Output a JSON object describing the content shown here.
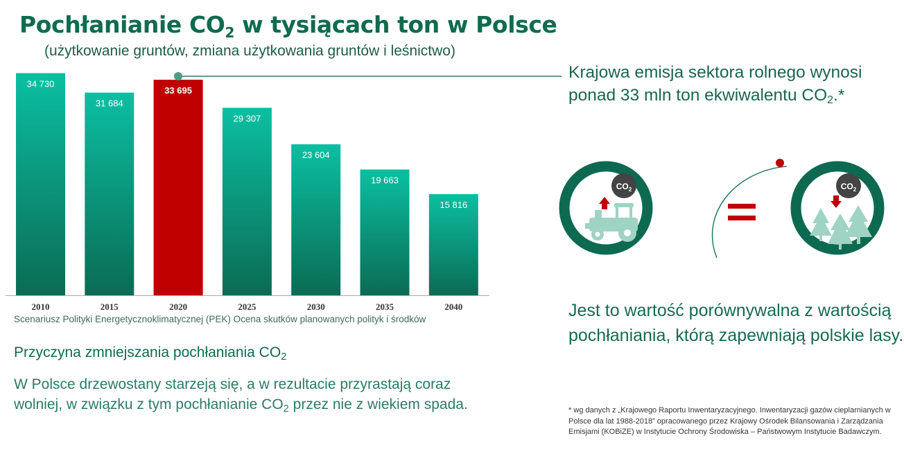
{
  "header": {
    "title_pre": "Pochłanianie CO",
    "title_sub": "2",
    "title_post": " w tysiącach ton w Polsce",
    "subtitle": "(użytkowanie gruntów, zmiana użytkowania gruntów i leśnictwo)"
  },
  "chart_data": {
    "type": "bar",
    "categories": [
      "2010",
      "2015",
      "2020",
      "2025",
      "2030",
      "2035",
      "2040"
    ],
    "values": [
      34730,
      31684,
      33695,
      29307,
      23604,
      19663,
      15816
    ],
    "value_labels": [
      "34 730",
      "31 684",
      "33 695",
      "29 307",
      "23 604",
      "19 663",
      "15 816"
    ],
    "highlight_index": 2,
    "ylim": [
      0,
      35000
    ],
    "colors": {
      "bar_top": "#0bbfa2",
      "bar_bottom": "#0b6b54",
      "highlight": "#c00000",
      "axis": "#aaaaaa",
      "tick_text": "#333333"
    }
  },
  "chart_note": "Scenariusz Polityki Energetycznoklimatycznej (PEK) Ocena skutków planowanych polityk i środków",
  "reason": {
    "heading_pre": "Przyczyna zmniejszania pochłaniania CO",
    "heading_sub": "2",
    "text_pre": "W Polsce drzewostany starzeją się, a w rezultacie przyrastają coraz wolniej,  w związku z tym pochłanianie CO",
    "text_sub": "2",
    "text_post": " przez nie z wiekiem spada."
  },
  "emission": {
    "text_pre": "Krajowa emisja sektora rolnego wynosi ponad 33 mln ton ekwiwalentu CO",
    "text_sub": "2",
    "text_post": ".*"
  },
  "comparison": "Jest to wartość porównywalna z wartością pochłaniania, którą zapewniają polskie lasy.",
  "footnote": "* wg danych z „Krajowego Raportu Inwentaryzacyjnego. Inwentaryzacji gazów cieplarnianych w Polsce dla lat 1988-2018” opracowanego przez Krajowy Ośrodek Bilansowania i Zarządzania Emisjami (KOBiZE) w Instytucie Ochrony Środowiska – Państwowym Instytucie Badawczym.",
  "icons": {
    "left": "tractor-emission-icon",
    "middle": "equals-icon",
    "right": "forest-absorption-icon",
    "badge_text": "CO",
    "badge_sub": "2"
  },
  "palette": {
    "dark_green": "#0f6b4f",
    "ring_green": "#0d6a50",
    "light_green": "#b9ddd3",
    "red": "#c00000"
  }
}
